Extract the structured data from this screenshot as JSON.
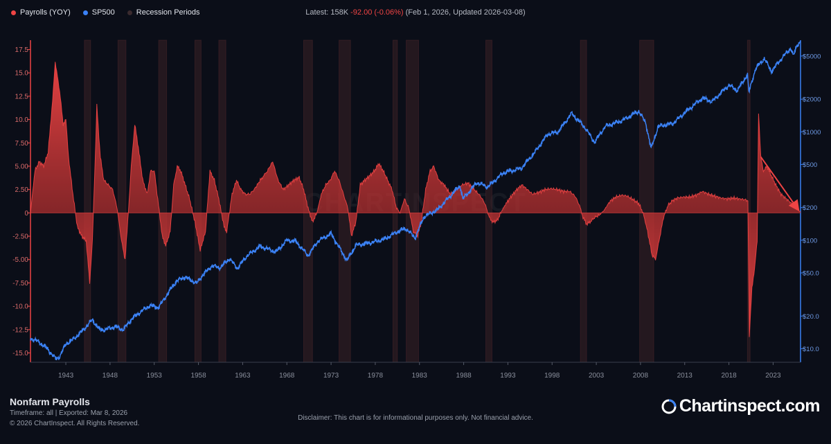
{
  "legend": [
    {
      "label": "Payrolls (YOY)",
      "color": "#ef4444"
    },
    {
      "label": "SP500",
      "color": "#3b82f6"
    },
    {
      "label": "Recession Periods",
      "color": "#3a2a2e"
    }
  ],
  "latest": {
    "prefix": "Latest: 158K",
    "change": "-92.00 (-0.06%)",
    "suffix": "(Feb 1, 2026, Updated 2026-03-08)"
  },
  "footer": {
    "title": "Nonfarm Payrolls",
    "meta": "Timeframe: all | Exported: Mar 8, 2026",
    "copyright": "© 2026 ChartInspect. All Rights Reserved.",
    "disclaimer": "Disclaimer: This chart is for informational purposes only. Not financial advice.",
    "brand": "Chartinspect.com",
    "watermark": "CHARTINSPECT"
  },
  "chart_data": {
    "type": "area",
    "title": "Nonfarm Payrolls",
    "x_range": [
      1939,
      2026.1
    ],
    "left_axis": {
      "label": "Payrolls (YOY)",
      "ylim": [
        -16,
        18.5
      ],
      "ticks": [
        17.5,
        15.0,
        12.5,
        10.0,
        7.5,
        5.0,
        2.5,
        0,
        -2.5,
        -5.0,
        -7.5,
        -10.0,
        -12.5,
        -15.0
      ],
      "tick_labels": [
        "17.5",
        "15.0",
        "12.5",
        "10.0",
        "7.50",
        "5.00",
        "2.50",
        "0",
        "-2.50",
        "-5.00",
        "-7.50",
        "-10.0",
        "-12.5",
        "-15.0"
      ]
    },
    "right_axis": {
      "label": "SP500",
      "scale": "log",
      "ylim": [
        7.5,
        7000
      ],
      "ticks": [
        5000,
        2000,
        1000,
        500,
        200,
        100,
        50,
        20,
        10
      ],
      "tick_labels": [
        "$5000",
        "$2000",
        "$1000",
        "$500",
        "$200",
        "$100",
        "$50.0",
        "$20.0",
        "$10.0"
      ]
    },
    "x_ticks": [
      1943,
      1948,
      1953,
      1958,
      1963,
      1968,
      1973,
      1978,
      1983,
      1988,
      1993,
      1998,
      2003,
      2008,
      2013,
      2018,
      2023
    ],
    "x_tick_labels": [
      "1943",
      "1948",
      "1953",
      "1958",
      "1963",
      "1968",
      "1973",
      "1978",
      "1983",
      "1988",
      "1993",
      "1998",
      "2003",
      "2008",
      "2013",
      "2018",
      "2023"
    ],
    "recessions": [
      [
        1945.1,
        1945.8
      ],
      [
        1948.9,
        1949.8
      ],
      [
        1953.5,
        1954.4
      ],
      [
        1957.6,
        1958.3
      ],
      [
        1960.3,
        1961.1
      ],
      [
        1969.9,
        1970.9
      ],
      [
        1973.9,
        1975.2
      ],
      [
        1980.0,
        1980.5
      ],
      [
        1981.5,
        1982.9
      ],
      [
        1990.5,
        1991.2
      ],
      [
        2001.2,
        2001.9
      ],
      [
        2007.9,
        2009.5
      ],
      [
        2020.1,
        2020.4
      ]
    ],
    "series": [
      {
        "name": "Payrolls (YOY)",
        "color": "#ef4444",
        "points": [
          [
            1939.0,
            0
          ],
          [
            1939.5,
            4.5
          ],
          [
            1940.0,
            5.5
          ],
          [
            1940.5,
            5.0
          ],
          [
            1941.0,
            6.5
          ],
          [
            1941.5,
            12.0
          ],
          [
            1941.8,
            16.2
          ],
          [
            1942.3,
            13.0
          ],
          [
            1942.7,
            9.5
          ],
          [
            1943.0,
            10.0
          ],
          [
            1943.3,
            6.0
          ],
          [
            1943.8,
            2.0
          ],
          [
            1944.3,
            -1.5
          ],
          [
            1944.8,
            -2.5
          ],
          [
            1945.3,
            -3.0
          ],
          [
            1945.7,
            -7.5
          ],
          [
            1946.0,
            -3.0
          ],
          [
            1946.3,
            5.0
          ],
          [
            1946.5,
            11.5
          ],
          [
            1946.9,
            6.0
          ],
          [
            1947.3,
            3.5
          ],
          [
            1947.8,
            3.0
          ],
          [
            1948.3,
            2.5
          ],
          [
            1948.8,
            0.5
          ],
          [
            1949.3,
            -3.0
          ],
          [
            1949.7,
            -5.0
          ],
          [
            1950.0,
            -1.0
          ],
          [
            1950.4,
            5.0
          ],
          [
            1950.8,
            9.5
          ],
          [
            1951.2,
            7.0
          ],
          [
            1951.7,
            3.5
          ],
          [
            1952.2,
            2.0
          ],
          [
            1952.6,
            4.5
          ],
          [
            1953.0,
            4.5
          ],
          [
            1953.4,
            1.5
          ],
          [
            1953.9,
            -2.5
          ],
          [
            1954.3,
            -3.5
          ],
          [
            1954.8,
            -2.0
          ],
          [
            1955.2,
            3.0
          ],
          [
            1955.6,
            5.0
          ],
          [
            1956.0,
            4.5
          ],
          [
            1956.5,
            3.0
          ],
          [
            1957.0,
            1.5
          ],
          [
            1957.6,
            -1.0
          ],
          [
            1958.2,
            -4.0
          ],
          [
            1958.8,
            -2.0
          ],
          [
            1959.3,
            4.5
          ],
          [
            1959.8,
            3.5
          ],
          [
            1960.3,
            1.5
          ],
          [
            1960.9,
            -1.5
          ],
          [
            1961.2,
            -2.0
          ],
          [
            1961.8,
            2.0
          ],
          [
            1962.3,
            3.5
          ],
          [
            1962.8,
            2.5
          ],
          [
            1963.3,
            2.0
          ],
          [
            1963.8,
            2.0
          ],
          [
            1964.3,
            2.5
          ],
          [
            1965.0,
            3.5
          ],
          [
            1965.8,
            4.5
          ],
          [
            1966.4,
            5.5
          ],
          [
            1967.0,
            3.5
          ],
          [
            1967.6,
            2.5
          ],
          [
            1968.2,
            3.0
          ],
          [
            1968.8,
            3.5
          ],
          [
            1969.4,
            3.8
          ],
          [
            1969.9,
            2.5
          ],
          [
            1970.4,
            0.5
          ],
          [
            1970.9,
            -1.0
          ],
          [
            1971.4,
            0.0
          ],
          [
            1971.9,
            2.0
          ],
          [
            1972.4,
            3.0
          ],
          [
            1972.9,
            3.5
          ],
          [
            1973.4,
            4.5
          ],
          [
            1973.9,
            3.5
          ],
          [
            1974.4,
            2.0
          ],
          [
            1974.9,
            0.5
          ],
          [
            1975.3,
            -2.5
          ],
          [
            1975.8,
            -1.0
          ],
          [
            1976.3,
            3.0
          ],
          [
            1976.8,
            3.5
          ],
          [
            1977.4,
            4.0
          ],
          [
            1977.9,
            4.5
          ],
          [
            1978.4,
            5.3
          ],
          [
            1978.9,
            4.5
          ],
          [
            1979.4,
            3.5
          ],
          [
            1979.9,
            2.5
          ],
          [
            1980.4,
            0.5
          ],
          [
            1980.8,
            0.0
          ],
          [
            1981.3,
            1.5
          ],
          [
            1981.8,
            0.5
          ],
          [
            1982.3,
            -2.0
          ],
          [
            1982.8,
            -2.5
          ],
          [
            1983.2,
            -1.0
          ],
          [
            1983.7,
            2.5
          ],
          [
            1984.2,
            4.5
          ],
          [
            1984.6,
            5.0
          ],
          [
            1985.2,
            3.5
          ],
          [
            1985.8,
            3.0
          ],
          [
            1986.5,
            2.0
          ],
          [
            1987.2,
            2.5
          ],
          [
            1987.8,
            3.0
          ],
          [
            1988.5,
            3.2
          ],
          [
            1989.2,
            2.5
          ],
          [
            1989.9,
            1.8
          ],
          [
            1990.4,
            1.0
          ],
          [
            1990.9,
            -0.5
          ],
          [
            1991.3,
            -1.0
          ],
          [
            1991.8,
            -0.8
          ],
          [
            1992.3,
            0.2
          ],
          [
            1992.8,
            1.0
          ],
          [
            1993.4,
            1.8
          ],
          [
            1994.0,
            2.5
          ],
          [
            1994.6,
            3.0
          ],
          [
            1995.2,
            2.5
          ],
          [
            1995.8,
            2.0
          ],
          [
            1996.5,
            2.2
          ],
          [
            1997.2,
            2.5
          ],
          [
            1997.9,
            2.6
          ],
          [
            1998.6,
            2.5
          ],
          [
            1999.3,
            2.3
          ],
          [
            2000.0,
            2.3
          ],
          [
            2000.6,
            1.8
          ],
          [
            2001.1,
            0.8
          ],
          [
            2001.5,
            -0.5
          ],
          [
            2001.9,
            -1.2
          ],
          [
            2002.3,
            -1.0
          ],
          [
            2002.8,
            -0.5
          ],
          [
            2003.4,
            -0.2
          ],
          [
            2003.9,
            0.3
          ],
          [
            2004.5,
            1.2
          ],
          [
            2005.2,
            1.7
          ],
          [
            2005.9,
            1.9
          ],
          [
            2006.5,
            1.8
          ],
          [
            2007.2,
            1.4
          ],
          [
            2007.8,
            1.0
          ],
          [
            2008.3,
            0.0
          ],
          [
            2008.8,
            -2.0
          ],
          [
            2009.3,
            -4.5
          ],
          [
            2009.7,
            -5.0
          ],
          [
            2010.1,
            -3.0
          ],
          [
            2010.6,
            -0.5
          ],
          [
            2011.1,
            0.8
          ],
          [
            2011.6,
            1.3
          ],
          [
            2012.2,
            1.6
          ],
          [
            2012.9,
            1.7
          ],
          [
            2013.6,
            1.7
          ],
          [
            2014.3,
            1.9
          ],
          [
            2015.0,
            2.3
          ],
          [
            2015.7,
            2.0
          ],
          [
            2016.4,
            1.8
          ],
          [
            2017.1,
            1.6
          ],
          [
            2017.8,
            1.5
          ],
          [
            2018.5,
            1.6
          ],
          [
            2019.2,
            1.5
          ],
          [
            2019.9,
            1.4
          ],
          [
            2020.15,
            1.3
          ],
          [
            2020.3,
            -13.4
          ],
          [
            2020.6,
            -8.0
          ],
          [
            2020.9,
            -6.0
          ],
          [
            2021.2,
            -3.0
          ],
          [
            2021.35,
            10.8
          ],
          [
            2021.6,
            6.0
          ],
          [
            2021.9,
            4.5
          ],
          [
            2022.3,
            5.0
          ],
          [
            2022.8,
            4.0
          ],
          [
            2023.3,
            3.0
          ],
          [
            2023.9,
            2.0
          ],
          [
            2024.5,
            1.5
          ],
          [
            2025.1,
            1.0
          ],
          [
            2025.7,
            0.5
          ],
          [
            2026.1,
            0.1
          ]
        ]
      },
      {
        "name": "SP500",
        "color": "#3b82f6",
        "points": [
          [
            1939.0,
            12.5
          ],
          [
            1940.0,
            11.5
          ],
          [
            1941.0,
            9.8
          ],
          [
            1941.9,
            8.0
          ],
          [
            1942.3,
            8.5
          ],
          [
            1943.0,
            11.0
          ],
          [
            1944.0,
            12.5
          ],
          [
            1945.0,
            15.0
          ],
          [
            1946.0,
            18.5
          ],
          [
            1946.8,
            15.0
          ],
          [
            1947.5,
            15.0
          ],
          [
            1948.5,
            16.0
          ],
          [
            1949.5,
            15.0
          ],
          [
            1950.5,
            19.0
          ],
          [
            1951.5,
            22.0
          ],
          [
            1952.5,
            25.0
          ],
          [
            1953.5,
            24.0
          ],
          [
            1954.5,
            32.0
          ],
          [
            1955.5,
            42.0
          ],
          [
            1956.5,
            46.0
          ],
          [
            1957.8,
            40.0
          ],
          [
            1958.5,
            48.0
          ],
          [
            1959.5,
            58.0
          ],
          [
            1960.5,
            56.0
          ],
          [
            1961.5,
            68.0
          ],
          [
            1962.4,
            55.0
          ],
          [
            1963.5,
            72.0
          ],
          [
            1965.0,
            88.0
          ],
          [
            1966.8,
            78.0
          ],
          [
            1968.0,
            100.0
          ],
          [
            1969.0,
            98.0
          ],
          [
            1970.4,
            72.0
          ],
          [
            1971.5,
            98.0
          ],
          [
            1973.0,
            115.0
          ],
          [
            1974.8,
            65.0
          ],
          [
            1975.8,
            90.0
          ],
          [
            1977.5,
            95.0
          ],
          [
            1979.0,
            102.0
          ],
          [
            1980.5,
            120.0
          ],
          [
            1981.5,
            128.0
          ],
          [
            1982.5,
            105.0
          ],
          [
            1983.5,
            165.0
          ],
          [
            1985.0,
            190.0
          ],
          [
            1987.6,
            320.0
          ],
          [
            1987.9,
            240.0
          ],
          [
            1989.5,
            340.0
          ],
          [
            1990.7,
            310.0
          ],
          [
            1992.5,
            420.0
          ],
          [
            1994.5,
            460.0
          ],
          [
            1996.0,
            640.0
          ],
          [
            1997.5,
            950.0
          ],
          [
            1998.7,
            1000.0
          ],
          [
            2000.2,
            1480.0
          ],
          [
            2001.7,
            1100.0
          ],
          [
            2002.8,
            800.0
          ],
          [
            2004.0,
            1120.0
          ],
          [
            2006.0,
            1280.0
          ],
          [
            2007.8,
            1550.0
          ],
          [
            2008.6,
            1200.0
          ],
          [
            2009.2,
            700.0
          ],
          [
            2010.0,
            1120.0
          ],
          [
            2011.7,
            1200.0
          ],
          [
            2013.0,
            1500.0
          ],
          [
            2015.0,
            2050.0
          ],
          [
            2016.1,
            1900.0
          ],
          [
            2018.0,
            2700.0
          ],
          [
            2018.95,
            2400.0
          ],
          [
            2020.1,
            3380.0
          ],
          [
            2020.25,
            2300.0
          ],
          [
            2021.0,
            3800.0
          ],
          [
            2022.0,
            4750.0
          ],
          [
            2022.8,
            3600.0
          ],
          [
            2024.0,
            4800.0
          ],
          [
            2025.0,
            5900.0
          ],
          [
            2025.3,
            5000.0
          ],
          [
            2025.7,
            6300.0
          ],
          [
            2026.1,
            6800.0
          ]
        ]
      }
    ],
    "annotation": {
      "type": "arrow",
      "from": [
        2021.6,
        6.0
      ],
      "to": [
        2025.8,
        0.4
      ],
      "color": "#ef4444"
    }
  }
}
